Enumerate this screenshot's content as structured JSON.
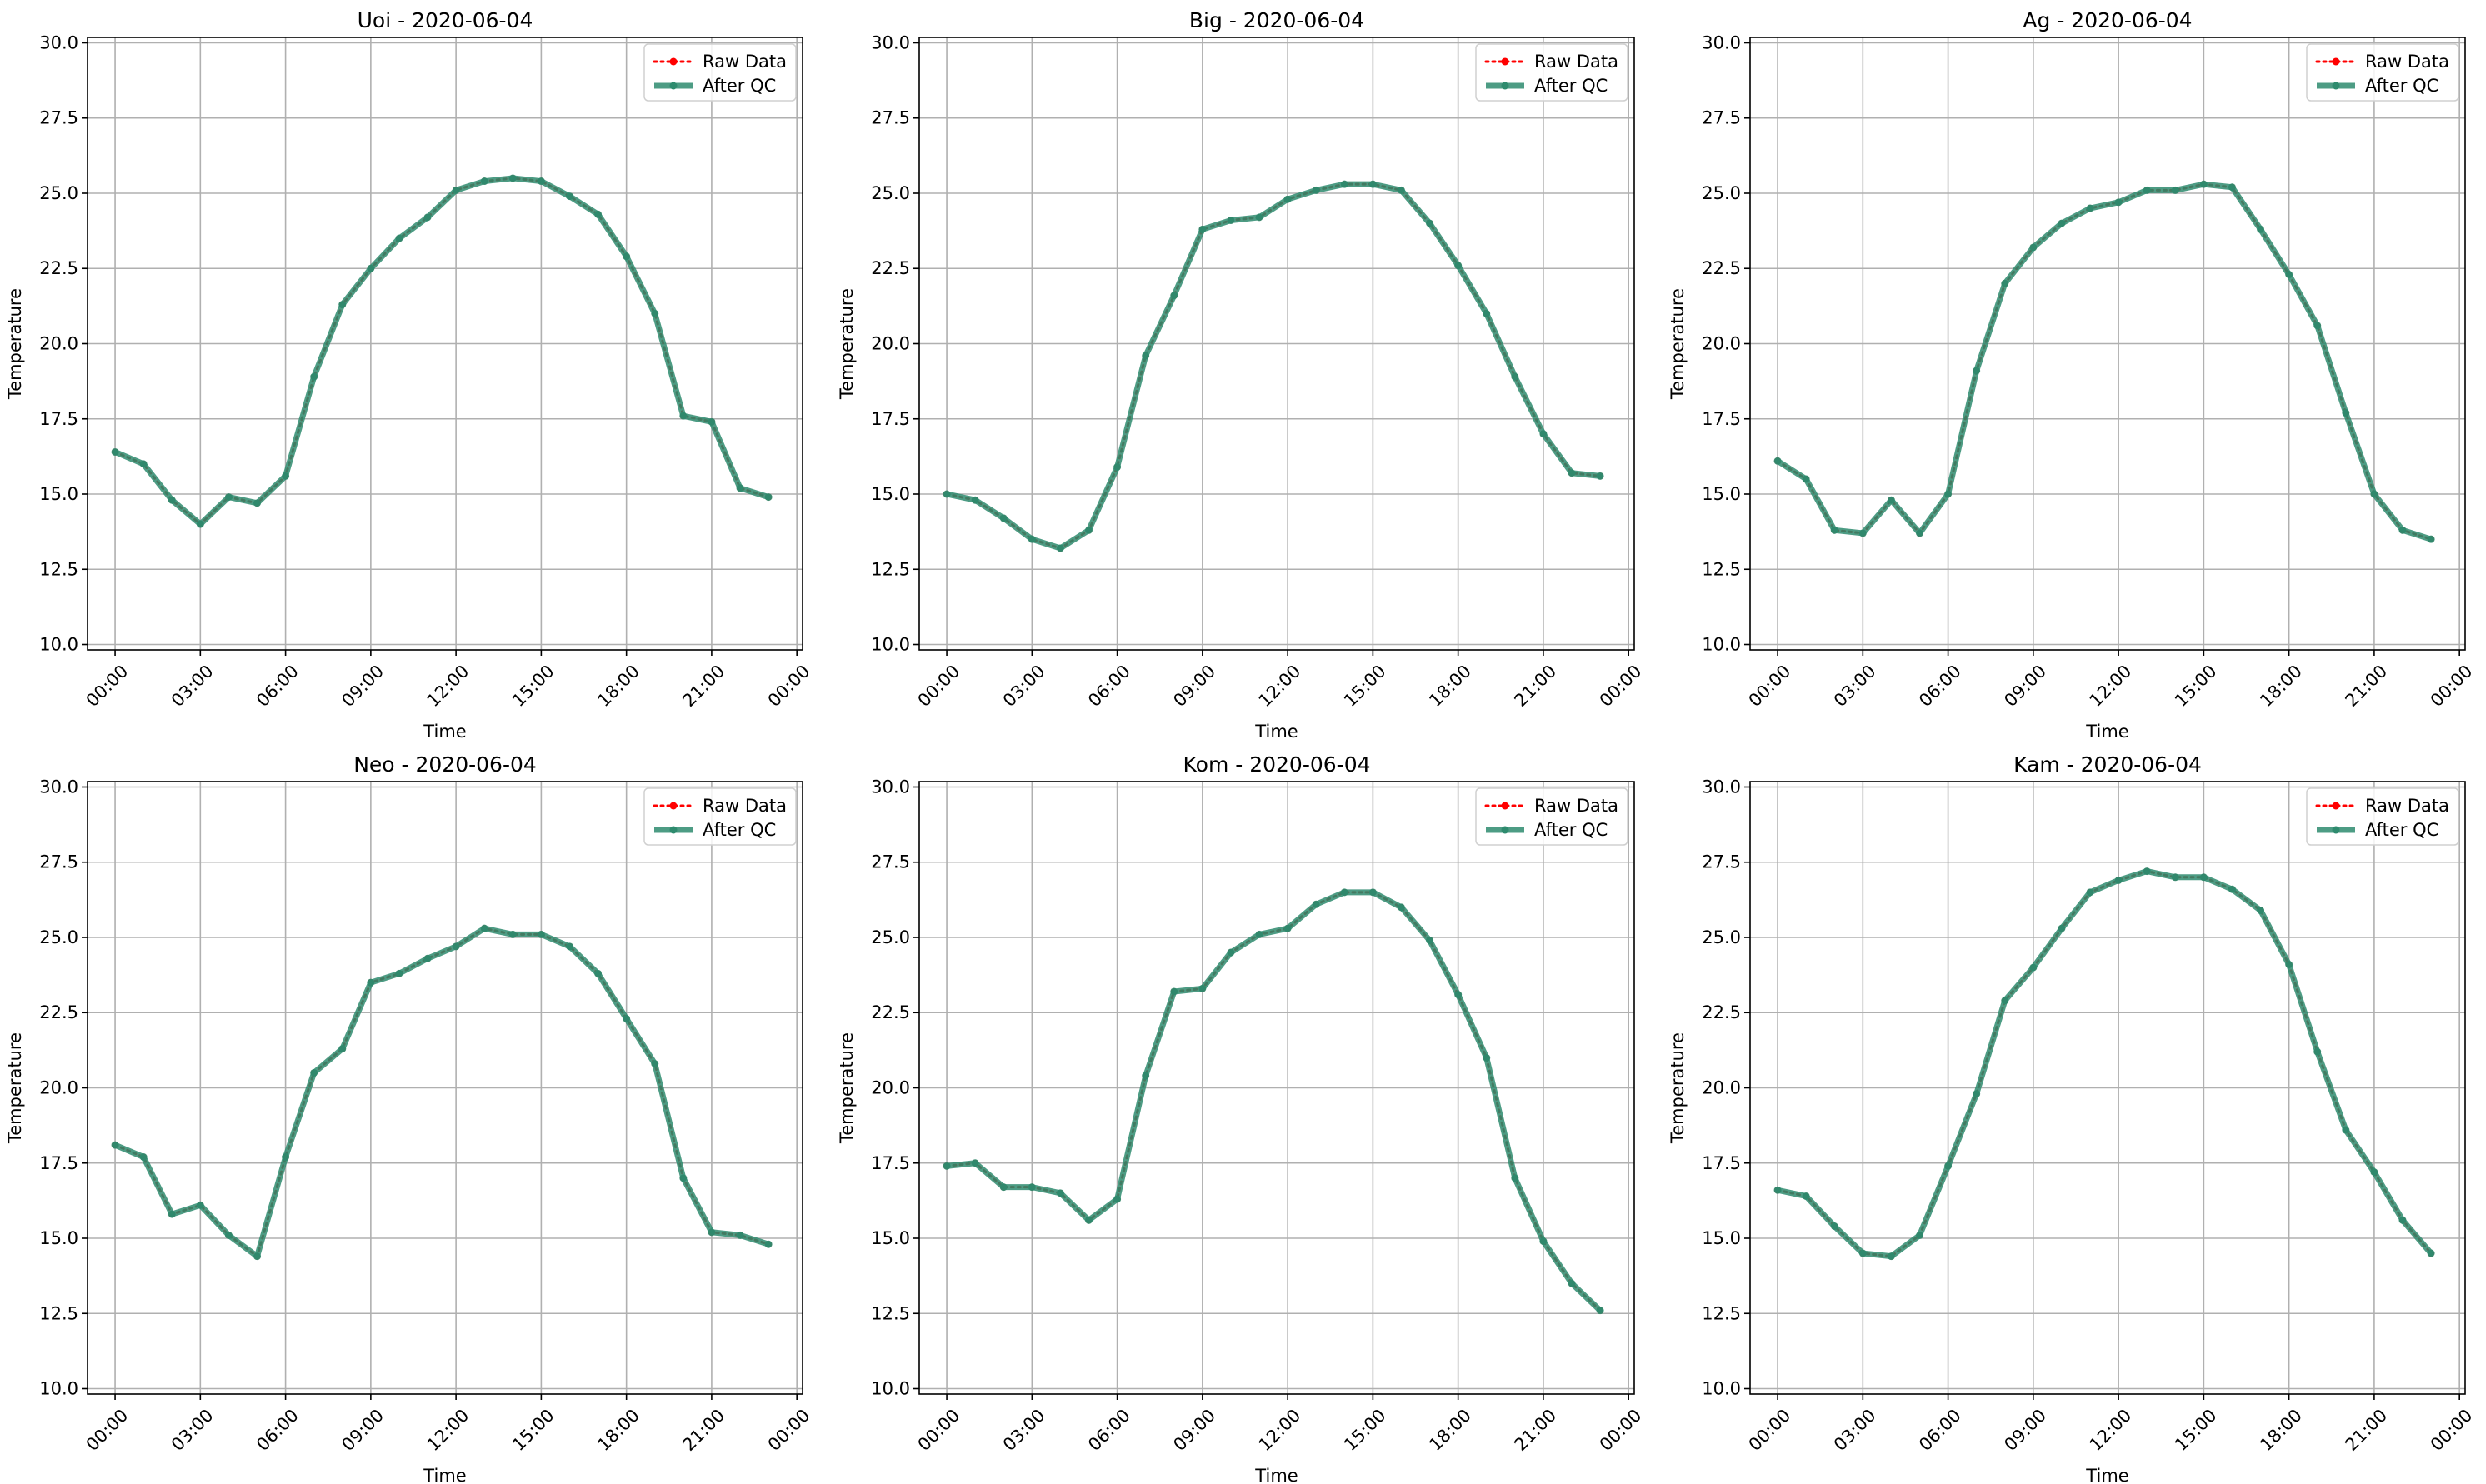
{
  "figure": {
    "legend_labels": {
      "raw": "Raw Data",
      "qc": "After QC"
    },
    "colors": {
      "raw": "#ff0000",
      "qc": "#2e8b6e",
      "grid": "#b0b0b0",
      "axes": "#000000"
    }
  },
  "chart_data": [
    {
      "type": "line",
      "title": "Uoi - 2020-06-04",
      "xlabel": "Time",
      "ylabel": "Temperature",
      "x": [
        "00:00",
        "01:00",
        "02:00",
        "03:00",
        "04:00",
        "05:00",
        "06:00",
        "07:00",
        "08:00",
        "09:00",
        "10:00",
        "11:00",
        "12:00",
        "13:00",
        "14:00",
        "15:00",
        "16:00",
        "17:00",
        "18:00",
        "19:00",
        "20:00",
        "21:00",
        "22:00",
        "23:00"
      ],
      "xticks": [
        "00:00",
        "03:00",
        "06:00",
        "09:00",
        "12:00",
        "15:00",
        "18:00",
        "21:00",
        "00:00"
      ],
      "ylim": [
        10,
        30
      ],
      "yticks": [
        "10.0",
        "12.5",
        "15.0",
        "17.5",
        "20.0",
        "22.5",
        "25.0",
        "27.5",
        "30.0"
      ],
      "grid": true,
      "legend": "top-right",
      "series": [
        {
          "name": "Raw Data",
          "values": [
            16.4,
            16.0,
            14.8,
            14.0,
            14.9,
            14.7,
            15.6,
            18.9,
            21.3,
            22.5,
            23.5,
            24.2,
            25.1,
            25.4,
            25.5,
            25.4,
            24.9,
            24.3,
            22.9,
            21.0,
            17.6,
            17.4,
            15.2,
            14.9
          ]
        },
        {
          "name": "After QC",
          "values": [
            16.4,
            16.0,
            14.8,
            14.0,
            14.9,
            14.7,
            15.6,
            18.9,
            21.3,
            22.5,
            23.5,
            24.2,
            25.1,
            25.4,
            25.5,
            25.4,
            24.9,
            24.3,
            22.9,
            21.0,
            17.6,
            17.4,
            15.2,
            14.9
          ]
        }
      ]
    },
    {
      "type": "line",
      "title": "Big - 2020-06-04",
      "xlabel": "Time",
      "ylabel": "Temperature",
      "x": [
        "00:00",
        "01:00",
        "02:00",
        "03:00",
        "04:00",
        "05:00",
        "06:00",
        "07:00",
        "08:00",
        "09:00",
        "10:00",
        "11:00",
        "12:00",
        "13:00",
        "14:00",
        "15:00",
        "16:00",
        "17:00",
        "18:00",
        "19:00",
        "20:00",
        "21:00",
        "22:00",
        "23:00"
      ],
      "xticks": [
        "00:00",
        "03:00",
        "06:00",
        "09:00",
        "12:00",
        "15:00",
        "18:00",
        "21:00",
        "00:00"
      ],
      "ylim": [
        10,
        30
      ],
      "yticks": [
        "10.0",
        "12.5",
        "15.0",
        "17.5",
        "20.0",
        "22.5",
        "25.0",
        "27.5",
        "30.0"
      ],
      "grid": true,
      "legend": "top-right",
      "series": [
        {
          "name": "Raw Data",
          "values": [
            15.0,
            14.8,
            14.2,
            13.5,
            13.2,
            13.8,
            15.9,
            19.6,
            21.6,
            23.8,
            24.1,
            24.2,
            24.8,
            25.1,
            25.3,
            25.3,
            25.1,
            24.0,
            22.6,
            21.0,
            18.9,
            17.0,
            15.7,
            15.6
          ]
        },
        {
          "name": "After QC",
          "values": [
            15.0,
            14.8,
            14.2,
            13.5,
            13.2,
            13.8,
            15.9,
            19.6,
            21.6,
            23.8,
            24.1,
            24.2,
            24.8,
            25.1,
            25.3,
            25.3,
            25.1,
            24.0,
            22.6,
            21.0,
            18.9,
            17.0,
            15.7,
            15.6
          ]
        }
      ]
    },
    {
      "type": "line",
      "title": "Ag - 2020-06-04",
      "xlabel": "Time",
      "ylabel": "Temperature",
      "x": [
        "00:00",
        "01:00",
        "02:00",
        "03:00",
        "04:00",
        "05:00",
        "06:00",
        "07:00",
        "08:00",
        "09:00",
        "10:00",
        "11:00",
        "12:00",
        "13:00",
        "14:00",
        "15:00",
        "16:00",
        "17:00",
        "18:00",
        "19:00",
        "20:00",
        "21:00",
        "22:00",
        "23:00"
      ],
      "xticks": [
        "00:00",
        "03:00",
        "06:00",
        "09:00",
        "12:00",
        "15:00",
        "18:00",
        "21:00",
        "00:00"
      ],
      "ylim": [
        10,
        30
      ],
      "yticks": [
        "10.0",
        "12.5",
        "15.0",
        "17.5",
        "20.0",
        "22.5",
        "25.0",
        "27.5",
        "30.0"
      ],
      "grid": true,
      "legend": "top-right",
      "series": [
        {
          "name": "Raw Data",
          "values": [
            16.1,
            15.5,
            13.8,
            13.7,
            14.8,
            13.7,
            15.0,
            19.1,
            22.0,
            23.2,
            24.0,
            24.5,
            24.7,
            25.1,
            25.1,
            25.3,
            25.2,
            23.8,
            22.3,
            20.6,
            17.7,
            15.0,
            13.8,
            13.5
          ]
        },
        {
          "name": "After QC",
          "values": [
            16.1,
            15.5,
            13.8,
            13.7,
            14.8,
            13.7,
            15.0,
            19.1,
            22.0,
            23.2,
            24.0,
            24.5,
            24.7,
            25.1,
            25.1,
            25.3,
            25.2,
            23.8,
            22.3,
            20.6,
            17.7,
            15.0,
            13.8,
            13.5
          ]
        }
      ]
    },
    {
      "type": "line",
      "title": "Neo - 2020-06-04",
      "xlabel": "Time",
      "ylabel": "Temperature",
      "x": [
        "00:00",
        "01:00",
        "02:00",
        "03:00",
        "04:00",
        "05:00",
        "06:00",
        "07:00",
        "08:00",
        "09:00",
        "10:00",
        "11:00",
        "12:00",
        "13:00",
        "14:00",
        "15:00",
        "16:00",
        "17:00",
        "18:00",
        "19:00",
        "20:00",
        "21:00",
        "22:00",
        "23:00"
      ],
      "xticks": [
        "00:00",
        "03:00",
        "06:00",
        "09:00",
        "12:00",
        "15:00",
        "18:00",
        "21:00",
        "00:00"
      ],
      "ylim": [
        10,
        30
      ],
      "yticks": [
        "10.0",
        "12.5",
        "15.0",
        "17.5",
        "20.0",
        "22.5",
        "25.0",
        "27.5",
        "30.0"
      ],
      "grid": true,
      "legend": "top-right",
      "series": [
        {
          "name": "Raw Data",
          "values": [
            18.1,
            17.7,
            15.8,
            16.1,
            15.1,
            14.4,
            17.7,
            20.5,
            21.3,
            23.5,
            23.8,
            24.3,
            24.7,
            25.3,
            25.1,
            25.1,
            24.7,
            23.8,
            22.3,
            20.8,
            17.0,
            15.2,
            15.1,
            14.8
          ]
        },
        {
          "name": "After QC",
          "values": [
            18.1,
            17.7,
            15.8,
            16.1,
            15.1,
            14.4,
            17.7,
            20.5,
            21.3,
            23.5,
            23.8,
            24.3,
            24.7,
            25.3,
            25.1,
            25.1,
            24.7,
            23.8,
            22.3,
            20.8,
            17.0,
            15.2,
            15.1,
            14.8
          ]
        }
      ]
    },
    {
      "type": "line",
      "title": "Kom - 2020-06-04",
      "xlabel": "Time",
      "ylabel": "Temperature",
      "x": [
        "00:00",
        "01:00",
        "02:00",
        "03:00",
        "04:00",
        "05:00",
        "06:00",
        "07:00",
        "08:00",
        "09:00",
        "10:00",
        "11:00",
        "12:00",
        "13:00",
        "14:00",
        "15:00",
        "16:00",
        "17:00",
        "18:00",
        "19:00",
        "20:00",
        "21:00",
        "22:00",
        "23:00"
      ],
      "xticks": [
        "00:00",
        "03:00",
        "06:00",
        "09:00",
        "12:00",
        "15:00",
        "18:00",
        "21:00",
        "00:00"
      ],
      "ylim": [
        10,
        30
      ],
      "yticks": [
        "10.0",
        "12.5",
        "15.0",
        "17.5",
        "20.0",
        "22.5",
        "25.0",
        "27.5",
        "30.0"
      ],
      "grid": true,
      "legend": "top-right",
      "series": [
        {
          "name": "Raw Data",
          "values": [
            17.4,
            17.5,
            16.7,
            16.7,
            16.5,
            15.6,
            16.3,
            20.4,
            23.2,
            23.3,
            24.5,
            25.1,
            25.3,
            26.1,
            26.5,
            26.5,
            26.0,
            24.9,
            23.1,
            21.0,
            17.0,
            14.9,
            13.5,
            12.6
          ]
        },
        {
          "name": "After QC",
          "values": [
            17.4,
            17.5,
            16.7,
            16.7,
            16.5,
            15.6,
            16.3,
            20.4,
            23.2,
            23.3,
            24.5,
            25.1,
            25.3,
            26.1,
            26.5,
            26.5,
            26.0,
            24.9,
            23.1,
            21.0,
            17.0,
            14.9,
            13.5,
            12.6
          ]
        }
      ]
    },
    {
      "type": "line",
      "title": "Kam - 2020-06-04",
      "xlabel": "Time",
      "ylabel": "Temperature",
      "x": [
        "00:00",
        "01:00",
        "02:00",
        "03:00",
        "04:00",
        "05:00",
        "06:00",
        "07:00",
        "08:00",
        "09:00",
        "10:00",
        "11:00",
        "12:00",
        "13:00",
        "14:00",
        "15:00",
        "16:00",
        "17:00",
        "18:00",
        "19:00",
        "20:00",
        "21:00",
        "22:00",
        "23:00"
      ],
      "xticks": [
        "00:00",
        "03:00",
        "06:00",
        "09:00",
        "12:00",
        "15:00",
        "18:00",
        "21:00",
        "00:00"
      ],
      "ylim": [
        10,
        30
      ],
      "yticks": [
        "10.0",
        "12.5",
        "15.0",
        "17.5",
        "20.0",
        "22.5",
        "25.0",
        "27.5",
        "30.0"
      ],
      "grid": true,
      "legend": "top-right",
      "series": [
        {
          "name": "Raw Data",
          "values": [
            16.6,
            16.4,
            15.4,
            14.5,
            14.4,
            15.1,
            17.4,
            19.8,
            22.9,
            24.0,
            25.3,
            26.5,
            26.9,
            27.2,
            27.0,
            27.0,
            26.6,
            25.9,
            24.1,
            21.2,
            18.6,
            17.2,
            15.6,
            14.5
          ]
        },
        {
          "name": "After QC",
          "values": [
            16.6,
            16.4,
            15.4,
            14.5,
            14.4,
            15.1,
            17.4,
            19.8,
            22.9,
            24.0,
            25.3,
            26.5,
            26.9,
            27.2,
            27.0,
            27.0,
            26.6,
            25.9,
            24.1,
            21.2,
            18.6,
            17.2,
            15.6,
            14.5
          ]
        }
      ]
    }
  ]
}
